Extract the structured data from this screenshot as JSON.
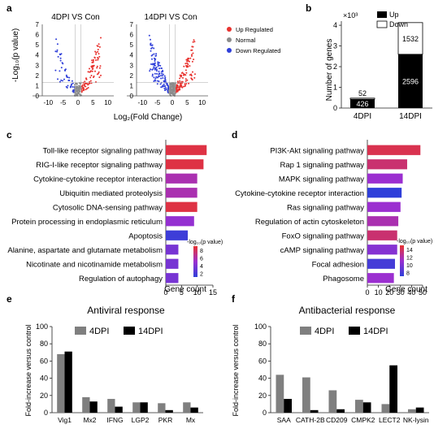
{
  "panel_labels": {
    "a": "a",
    "b": "b",
    "c": "c",
    "d": "d",
    "e": "e",
    "f": "f"
  },
  "colors": {
    "up": "#e8332f",
    "normal": "#8c8c8c",
    "down": "#2f3fd9",
    "bar_up": "#000000",
    "bar_down": "#ffffff",
    "grey_bar": "#7f7f7f",
    "black_bar": "#000000"
  },
  "chart_data": [
    {
      "id": "a",
      "type": "scatter",
      "plots": [
        {
          "title": "4DPI VS Con",
          "xticks": [
            "-10",
            "-5",
            "0",
            "5",
            "10"
          ],
          "yticks": [
            "0",
            "1",
            "2",
            "3",
            "4",
            "5",
            "6",
            "7"
          ],
          "xlim": [
            -12,
            12
          ],
          "ylim": [
            0,
            7
          ]
        },
        {
          "title": "14DPI VS Con",
          "xticks": [
            "-10",
            "-5",
            "0",
            "5",
            "10"
          ],
          "yticks": [
            "0",
            "1",
            "2",
            "3",
            "4",
            "5",
            "6",
            "7"
          ],
          "xlim": [
            -12,
            12
          ],
          "ylim": [
            0,
            7
          ]
        }
      ],
      "xlabel": "Log₂(Fold Change)",
      "ylabel": "-Log₁₀(p value)",
      "legend": [
        "Up Regulated",
        "Normal",
        "Down Regulated"
      ],
      "legend_placement": "right"
    },
    {
      "id": "b",
      "type": "bar",
      "categories": [
        "4DPI",
        "14DPI"
      ],
      "series": [
        {
          "name": "Up",
          "values": [
            426,
            2596
          ]
        },
        {
          "name": "Down",
          "values": [
            52,
            1532
          ]
        }
      ],
      "stacked": true,
      "ylabel": "Number of genes",
      "yscale_label": "×10³",
      "yticks": [
        "0",
        "1",
        "2",
        "3",
        "4"
      ],
      "ylim": [
        0,
        4200
      ],
      "legend_placement": "top"
    },
    {
      "id": "c",
      "type": "bar",
      "orientation": "horizontal",
      "categories": [
        "Toll-like receptor signaling pathway",
        "RIG-I-like receptor signaling pathway",
        "Cytokine-cytokine receptor interaction",
        "Ubiquitin mediated proteolysis",
        "Cytosolic DNA-sensing pathway",
        "Protein processing in endoplasmic reticulum",
        "Apoptosis",
        "Alanine, aspartate and glutamate metabolism",
        "Nicotinate and nicotinamide metabolism",
        "Regulation of autophagy"
      ],
      "values": [
        13,
        12,
        10,
        10,
        10,
        9,
        7,
        4,
        4,
        4
      ],
      "pvalues": [
        8.5,
        8.5,
        6,
        6,
        8.5,
        5,
        2,
        4,
        4,
        4
      ],
      "xlabel": "Gene count",
      "xticks": [
        "0",
        "5",
        "10",
        "15"
      ],
      "xlim": [
        0,
        15
      ],
      "colorbar": {
        "label": "-log₁₀(p value)",
        "ticks": [
          "8",
          "6",
          "4",
          "2"
        ],
        "range": [
          1.5,
          9
        ]
      }
    },
    {
      "id": "d",
      "type": "bar",
      "orientation": "horizontal",
      "categories": [
        "PI3K-Akt signaling pathway",
        "Rap 1 signaling pathway",
        "MAPK signaling pathway",
        "Cytokine-cytokine receptor interaction",
        "Ras signaling pathway",
        "Regulation of actin cytoskeleton",
        "FoxO signaling pathway",
        "cAMP signaling pathway",
        "Focal adhesion",
        "Phagosome"
      ],
      "values": [
        48,
        36,
        32,
        31,
        30,
        28,
        27,
        27,
        25,
        24
      ],
      "pvalues": [
        15,
        14,
        11,
        6,
        11,
        12,
        14,
        10,
        7,
        11
      ],
      "xlabel": "Gene count",
      "xticks": [
        "0",
        "10",
        "20",
        "30",
        "40",
        "50"
      ],
      "xlim": [
        0,
        50
      ],
      "colorbar": {
        "label": "-log₁₀(p value)",
        "ticks": [
          "14",
          "12",
          "10",
          "8"
        ],
        "range": [
          6,
          16
        ]
      }
    },
    {
      "id": "e",
      "type": "bar",
      "title": "Antiviral response",
      "categories": [
        "Vig1",
        "Mx2",
        "IFNG",
        "LGP2",
        "PKR",
        "Mx"
      ],
      "series": [
        {
          "name": "4DPI",
          "values": [
            68,
            18,
            16,
            12,
            11,
            12
          ]
        },
        {
          "name": "14DPI",
          "values": [
            71,
            13,
            7,
            12,
            3,
            6
          ]
        }
      ],
      "ylabel": "Fold-increase versus control",
      "yticks": [
        "0",
        "20",
        "40",
        "60",
        "80",
        "100"
      ],
      "ylim": [
        0,
        100
      ],
      "legend_placement": "top"
    },
    {
      "id": "f",
      "type": "bar",
      "title": "Antibacterial response",
      "categories": [
        "SAA",
        "CATH-2B",
        "CD209",
        "CMPK2",
        "LECT2",
        "NK-lysin"
      ],
      "series": [
        {
          "name": "4DPI",
          "values": [
            44,
            41,
            26,
            15,
            10,
            4
          ]
        },
        {
          "name": "14DPI",
          "values": [
            16,
            3,
            4,
            12,
            55,
            6
          ]
        }
      ],
      "ylabel": "Fold-increase versus control",
      "yticks": [
        "0",
        "20",
        "40",
        "60",
        "80",
        "100"
      ],
      "ylim": [
        0,
        100
      ],
      "legend_placement": "top"
    }
  ]
}
